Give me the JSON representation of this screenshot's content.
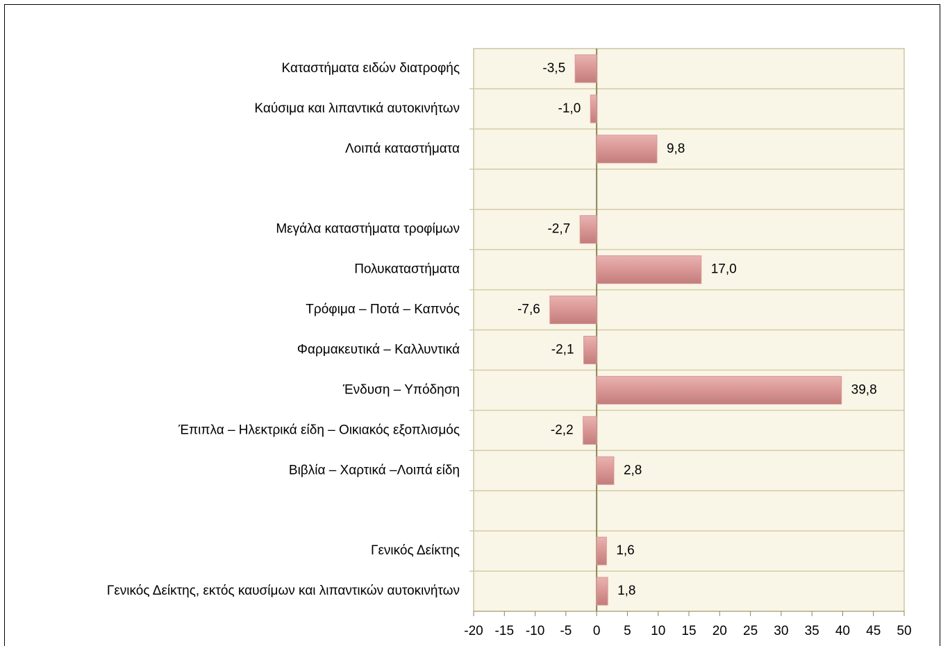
{
  "chart_data": {
    "type": "bar",
    "categories": [
      "Καταστήματα ειδών διατροφής",
      "Καύσιμα και λιπαντικά αυτοκινήτων",
      "Λοιπά καταστήματα",
      null,
      "Μεγάλα καταστήματα τροφίμων",
      "Πολυκαταστήματα",
      "Τρόφιμα – Ποτά – Καπνός",
      "Φαρμακευτικά – Καλλυντικά",
      "Ένδυση – Υπόδηση",
      "Έπιπλα – Ηλεκτρικά είδη – Οικιακός εξοπλισμός",
      "Βιβλία – Χαρτικά –Λοιπά είδη",
      null,
      "Γενικός Δείκτης",
      "Γενικός Δείκτης, εκτός καυσίμων και λιπαντικών αυτοκινήτων"
    ],
    "values": [
      -3.5,
      -1.0,
      9.8,
      null,
      -2.7,
      17.0,
      -7.6,
      -2.1,
      39.8,
      -2.2,
      2.8,
      null,
      1.6,
      1.8
    ],
    "value_labels": [
      "-3,5",
      "-1,0",
      "9,8",
      null,
      "-2,7",
      "17,0",
      "-7,6",
      "-2,1",
      "39,8",
      "-2,2",
      "2,8",
      null,
      "1,6",
      "1,8"
    ],
    "color": "#d99694",
    "xlim": [
      -20,
      50
    ],
    "xticks": [
      -20,
      -15,
      -10,
      -5,
      0,
      5,
      10,
      15,
      20,
      25,
      30,
      35,
      40,
      45,
      50
    ]
  }
}
